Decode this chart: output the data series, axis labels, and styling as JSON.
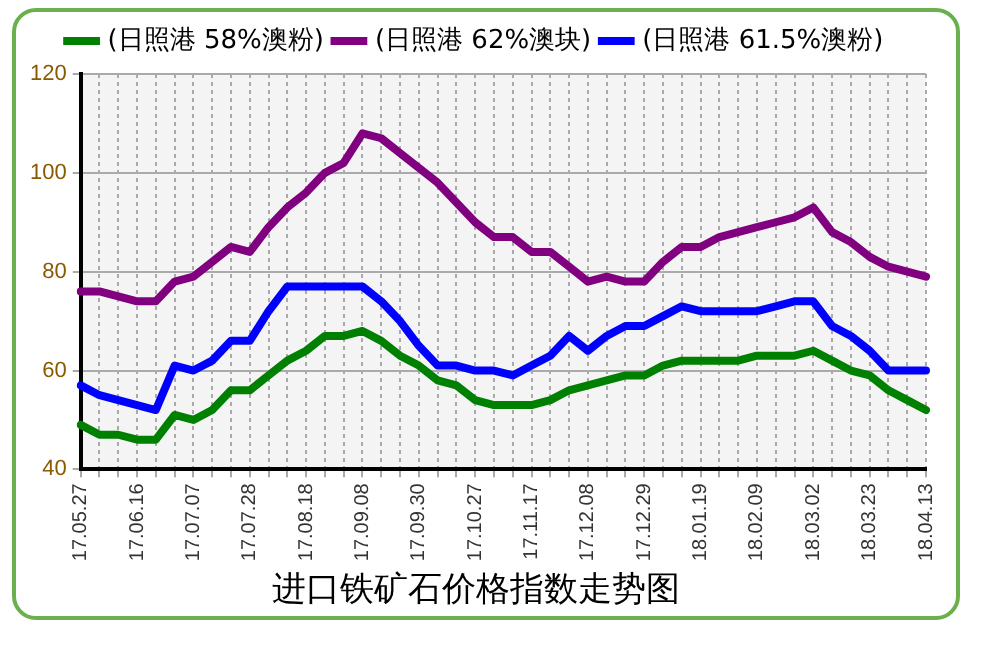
{
  "chart_data": {
    "type": "line",
    "title": "进口铁矿石价格指数走势图",
    "categories": [
      "17.05.27",
      null,
      null,
      "17.06.16",
      null,
      null,
      "17.07.07",
      null,
      null,
      "17.07.28",
      null,
      null,
      "17.08.18",
      null,
      null,
      "17.09.08",
      null,
      null,
      "17.09.30",
      null,
      null,
      "17.10.27",
      null,
      null,
      "17.11.17",
      null,
      null,
      "17.12.08",
      null,
      null,
      "17.12.29",
      null,
      null,
      "18.01.19",
      null,
      null,
      "18.02.09",
      null,
      null,
      "18.03.02",
      null,
      null,
      "18.03.23",
      null,
      null,
      "18.04.13"
    ],
    "series": [
      {
        "name": "(日照港 58%澳粉)",
        "color": "#008000",
        "values": [
          49,
          47,
          47,
          46,
          46,
          51,
          50,
          52,
          56,
          56,
          59,
          62,
          64,
          67,
          67,
          68,
          66,
          63,
          61,
          58,
          57,
          54,
          53,
          53,
          53,
          54,
          56,
          57,
          58,
          59,
          59,
          61,
          62,
          62,
          62,
          62,
          63,
          63,
          63,
          64,
          62,
          60,
          59,
          56,
          54,
          52
        ]
      },
      {
        "name": "(日照港 62%澳块)",
        "color": "#800080",
        "values": [
          76,
          76,
          75,
          74,
          74,
          78,
          79,
          82,
          85,
          84,
          89,
          93,
          96,
          100,
          102,
          108,
          107,
          104,
          101,
          98,
          94,
          90,
          87,
          87,
          84,
          84,
          81,
          78,
          79,
          78,
          78,
          82,
          85,
          85,
          87,
          88,
          89,
          90,
          91,
          93,
          88,
          86,
          83,
          81,
          80,
          79
        ]
      },
      {
        "name": "(日照港 61.5%澳粉)",
        "color": "#0000ff",
        "values": [
          57,
          55,
          54,
          53,
          52,
          61,
          60,
          62,
          66,
          66,
          72,
          77,
          77,
          77,
          77,
          77,
          74,
          70,
          65,
          61,
          61,
          60,
          60,
          59,
          61,
          63,
          67,
          64,
          67,
          69,
          69,
          71,
          73,
          72,
          72,
          72,
          72,
          73,
          74,
          74,
          69,
          67,
          64,
          60,
          60,
          60
        ]
      }
    ],
    "ylim": [
      40,
      120
    ],
    "yticks": [
      40,
      60,
      80,
      100,
      120
    ],
    "grid": true,
    "legend": "top",
    "marker": "none",
    "line_style": "solid"
  }
}
